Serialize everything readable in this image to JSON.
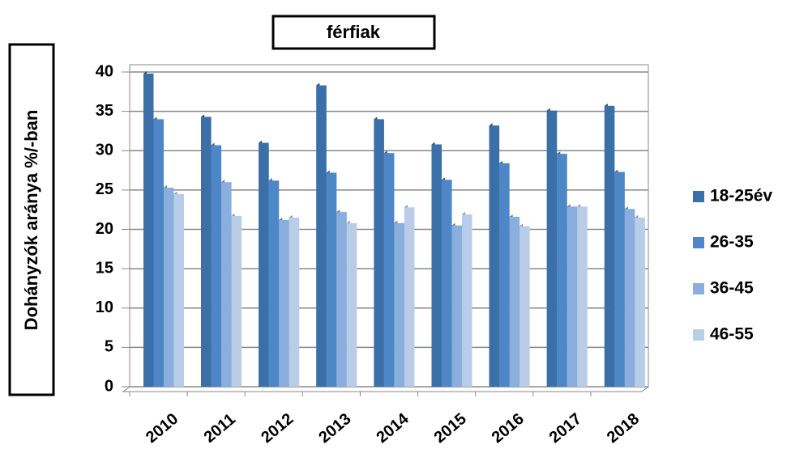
{
  "chart_data": {
    "type": "bar",
    "title": "férfiak",
    "y_label": "Dohányzók aránya %/-ban",
    "categories": [
      "2010",
      "2011",
      "2012",
      "2013",
      "2014",
      "2015",
      "2016",
      "2017",
      "2018"
    ],
    "series": [
      {
        "name": "18-25év",
        "color": "#3b6fa8",
        "values": [
          39.8,
          34.3,
          31,
          38.3,
          34,
          30.8,
          33.2,
          35.1,
          35.7
        ]
      },
      {
        "name": "26-35",
        "color": "#4d87c7",
        "values": [
          34,
          30.7,
          26.2,
          27.2,
          29.7,
          26.3,
          28.4,
          29.6,
          27.3
        ]
      },
      {
        "name": "36-45",
        "color": "#8aaedd",
        "values": [
          25.3,
          26,
          21.2,
          22.2,
          20.8,
          20.5,
          21.6,
          22.9,
          22.6
        ]
      },
      {
        "name": "46-55",
        "color": "#b9cde9",
        "values": [
          24.5,
          21.7,
          21.5,
          20.8,
          22.8,
          21.9,
          20.4,
          22.9,
          21.5
        ]
      }
    ],
    "ylim": [
      0,
      40
    ],
    "yticks": [
      0,
      5,
      10,
      15,
      20,
      25,
      30,
      35,
      40
    ],
    "grid": true,
    "legend": "right"
  }
}
